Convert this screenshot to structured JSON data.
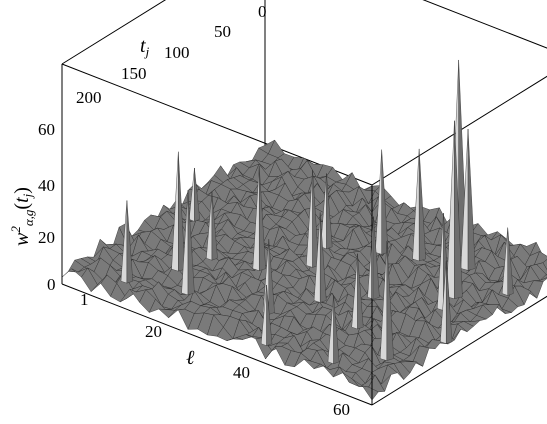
{
  "chart_data": {
    "type": "surface3d",
    "title": "",
    "xlabel": "ℓ",
    "ylabel": "t_j",
    "zlabel": "w²_{α,g}(t_j)",
    "xlim": [
      1,
      64
    ],
    "ylim": [
      0,
      256
    ],
    "zlim": [
      0,
      60
    ],
    "x_ticks": [
      "1",
      "20",
      "40",
      "60"
    ],
    "y_ticks": [
      "0",
      "50",
      "100",
      "150",
      "200"
    ],
    "z_ticks": [
      "0",
      "20",
      "40",
      "60"
    ],
    "peaks": [
      {
        "x": 46,
        "y": 35,
        "z": 55
      },
      {
        "x": 54,
        "y": 90,
        "z": 50
      },
      {
        "x": 50,
        "y": 48,
        "z": 40
      },
      {
        "x": 42,
        "y": 60,
        "z": 32
      },
      {
        "x": 55,
        "y": 110,
        "z": 28
      },
      {
        "x": 36,
        "y": 70,
        "z": 30
      },
      {
        "x": 30,
        "y": 120,
        "z": 28
      },
      {
        "x": 24,
        "y": 150,
        "z": 30
      },
      {
        "x": 14,
        "y": 190,
        "z": 34
      },
      {
        "x": 20,
        "y": 215,
        "z": 30
      },
      {
        "x": 10,
        "y": 230,
        "z": 24
      },
      {
        "x": 38,
        "y": 160,
        "z": 26
      },
      {
        "x": 48,
        "y": 175,
        "z": 22
      },
      {
        "x": 58,
        "y": 200,
        "z": 34
      },
      {
        "x": 62,
        "y": 150,
        "z": 24
      },
      {
        "x": 28,
        "y": 90,
        "z": 22
      },
      {
        "x": 44,
        "y": 130,
        "z": 24
      },
      {
        "x": 16,
        "y": 160,
        "z": 20
      },
      {
        "x": 52,
        "y": 230,
        "z": 20
      },
      {
        "x": 60,
        "y": 60,
        "z": 20
      },
      {
        "x": 34,
        "y": 200,
        "z": 22
      },
      {
        "x": 6,
        "y": 120,
        "z": 16
      },
      {
        "x": 40,
        "y": 240,
        "z": 18
      }
    ]
  }
}
